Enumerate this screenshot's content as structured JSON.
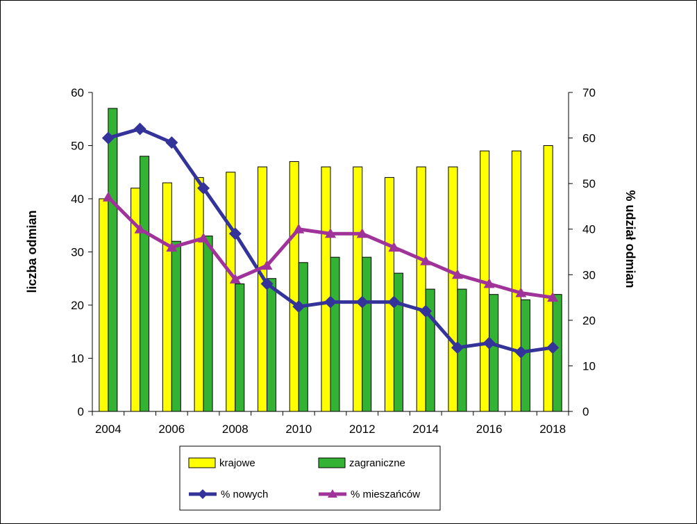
{
  "chart_data": {
    "type": "bar+line",
    "categories": [
      "2004",
      "2005",
      "2006",
      "2007",
      "2008",
      "2009",
      "2010",
      "2011",
      "2012",
      "2013",
      "2014",
      "2015",
      "2016",
      "2017",
      "2018"
    ],
    "x_tick_labels": [
      "2004",
      "2006",
      "2008",
      "2010",
      "2012",
      "2014",
      "2016",
      "2018"
    ],
    "bar_series": [
      {
        "name": "krajowe",
        "color": "#ffff00",
        "values": [
          40,
          42,
          43,
          44,
          45,
          46,
          47,
          46,
          46,
          44,
          46,
          46,
          49,
          49,
          50
        ]
      },
      {
        "name": "zagraniczne",
        "color": "#33b233",
        "values": [
          57,
          48,
          32,
          33,
          24,
          25,
          28,
          29,
          29,
          26,
          23,
          23,
          22,
          21,
          22
        ]
      }
    ],
    "line_series": [
      {
        "name": "% nowych",
        "color": "#333399",
        "marker": "diamond",
        "values": [
          60,
          62,
          59,
          49,
          39,
          28,
          23,
          24,
          24,
          24,
          22,
          14,
          15,
          13,
          14
        ]
      },
      {
        "name": "% mieszańców",
        "color": "#a0339a",
        "marker": "triangle",
        "values": [
          47,
          40,
          36,
          38,
          29,
          32,
          40,
          39,
          39,
          36,
          33,
          30,
          28,
          26,
          25
        ]
      }
    ],
    "y_left": {
      "label": "liczba odmian",
      "min": 0,
      "max": 60,
      "ticks": [
        "0",
        "10",
        "20",
        "30",
        "40",
        "50",
        "60"
      ]
    },
    "y_right": {
      "label": "% udział odmian",
      "min": 0,
      "max": 70,
      "ticks": [
        "0",
        "10",
        "20",
        "30",
        "40",
        "50",
        "60",
        "70"
      ]
    },
    "legend": [
      {
        "label": "krajowe",
        "kind": "bar",
        "color": "#ffff00"
      },
      {
        "label": "zagraniczne",
        "kind": "bar",
        "color": "#33b233"
      },
      {
        "label": "% nowych",
        "kind": "line",
        "marker": "diamond",
        "color": "#333399"
      },
      {
        "label": "% mieszańców",
        "kind": "line",
        "marker": "triangle",
        "color": "#a0339a"
      }
    ]
  }
}
